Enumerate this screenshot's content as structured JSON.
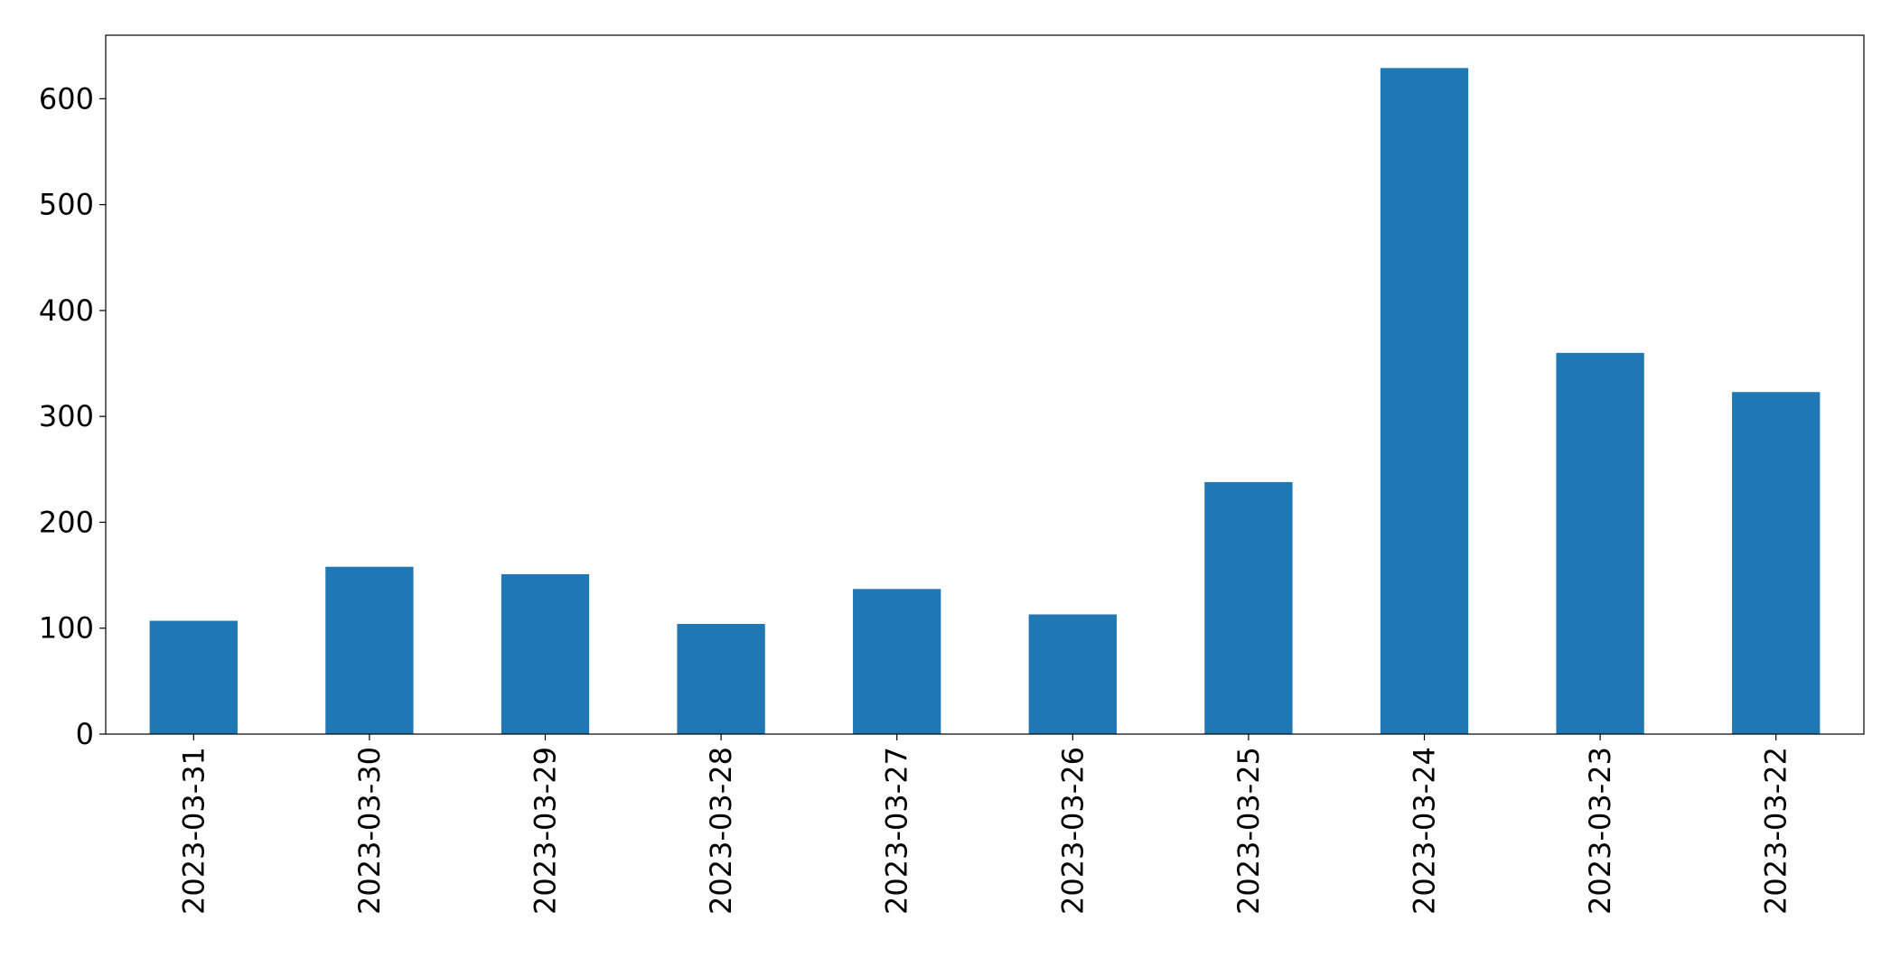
{
  "chart_data": {
    "type": "bar",
    "categories": [
      "2023-03-31",
      "2023-03-30",
      "2023-03-29",
      "2023-03-28",
      "2023-03-27",
      "2023-03-26",
      "2023-03-25",
      "2023-03-24",
      "2023-03-23",
      "2023-03-22"
    ],
    "values": [
      107,
      158,
      151,
      104,
      137,
      113,
      238,
      629,
      360,
      323
    ],
    "color": "#1f77b4",
    "ylim": [
      0,
      660
    ],
    "yticks": [
      0,
      100,
      200,
      300,
      400,
      500,
      600
    ],
    "grid": false
  }
}
